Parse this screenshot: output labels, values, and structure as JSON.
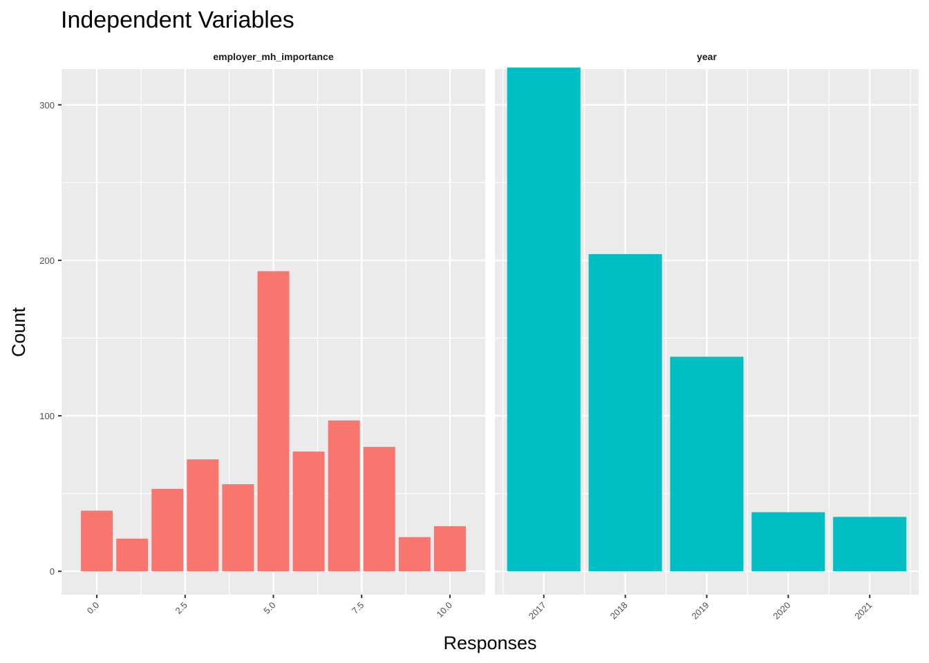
{
  "chart_data": {
    "title": "Independent Variables",
    "xlabel": "Responses",
    "ylabel": "Count",
    "ylim": [
      -15,
      323
    ],
    "yticks": [
      0,
      100,
      200,
      300
    ],
    "grid": true,
    "panels": [
      {
        "type": "bar",
        "facet_label": "employer_mh_importance",
        "fill_color": "#F8766D",
        "x": [
          0,
          1,
          2,
          3,
          4,
          5,
          6,
          7,
          8,
          9,
          10
        ],
        "values": [
          39,
          21,
          53,
          72,
          56,
          193,
          77,
          97,
          80,
          22,
          29
        ],
        "xlim": [
          -1,
          11
        ],
        "xticks": [
          "0.0",
          "2.5",
          "5.0",
          "7.5",
          "10.0"
        ],
        "xtick_values": [
          0,
          2.5,
          5,
          7.5,
          10
        ]
      },
      {
        "type": "bar",
        "facet_label": "year",
        "fill_color": "#00BFC4",
        "categories": [
          "2017",
          "2018",
          "2019",
          "2020",
          "2021"
        ],
        "values": [
          324,
          204,
          138,
          38,
          35
        ]
      }
    ]
  }
}
